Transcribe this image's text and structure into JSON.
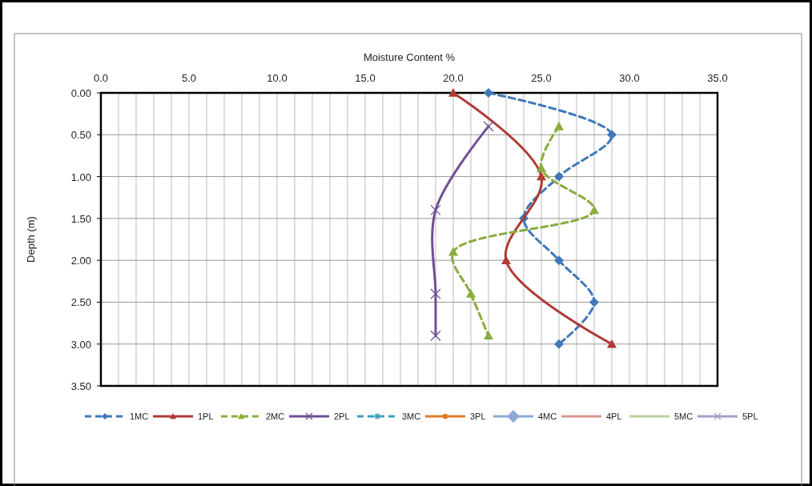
{
  "chart_data": {
    "type": "line",
    "xlabel": "Moisture Content %",
    "ylabel": "Depth (m)",
    "xlim": [
      0,
      35
    ],
    "xticks": [
      {
        "value": 0,
        "label": "0.0"
      },
      {
        "value": 1,
        "label": null
      },
      {
        "value": 2,
        "label": null
      },
      {
        "value": 3,
        "label": null
      },
      {
        "value": 4,
        "label": null
      },
      {
        "value": 5,
        "label": "5.0"
      },
      {
        "value": 6,
        "label": null
      },
      {
        "value": 7,
        "label": null
      },
      {
        "value": 8,
        "label": null
      },
      {
        "value": 9,
        "label": null
      },
      {
        "value": 10,
        "label": "10.0"
      },
      {
        "value": 11,
        "label": null
      },
      {
        "value": 12,
        "label": null
      },
      {
        "value": 13,
        "label": null
      },
      {
        "value": 14,
        "label": null
      },
      {
        "value": 15,
        "label": "15.0"
      },
      {
        "value": 16,
        "label": null
      },
      {
        "value": 17,
        "label": null
      },
      {
        "value": 18,
        "label": null
      },
      {
        "value": 19,
        "label": null
      },
      {
        "value": 20,
        "label": "20.0"
      },
      {
        "value": 21,
        "label": null
      },
      {
        "value": 22,
        "label": null
      },
      {
        "value": 23,
        "label": null
      },
      {
        "value": 24,
        "label": null
      },
      {
        "value": 25,
        "label": "25.0"
      },
      {
        "value": 26,
        "label": null
      },
      {
        "value": 27,
        "label": null
      },
      {
        "value": 28,
        "label": null
      },
      {
        "value": 29,
        "label": null
      },
      {
        "value": 30,
        "label": "30.0"
      },
      {
        "value": 31,
        "label": null
      },
      {
        "value": 32,
        "label": null
      },
      {
        "value": 33,
        "label": null
      },
      {
        "value": 34,
        "label": null
      },
      {
        "value": 35,
        "label": "35.0"
      }
    ],
    "ylim": [
      3.5,
      0
    ],
    "yticks": [
      {
        "value": 0,
        "label": "0.00"
      },
      {
        "value": 0.5,
        "label": "0.50"
      },
      {
        "value": 1,
        "label": "1.00"
      },
      {
        "value": 1.5,
        "label": "1.50"
      },
      {
        "value": 2,
        "label": "2.00"
      },
      {
        "value": 2.5,
        "label": "2.50"
      },
      {
        "value": 3,
        "label": "3.00"
      },
      {
        "value": 3.5,
        "label": "3.50"
      }
    ],
    "grid": true,
    "legend": "bottom",
    "series": [
      {
        "name": "1MC",
        "color": "#3f78b8",
        "marker": "diamond",
        "line_style": "dashed",
        "x": [
          22,
          29,
          26,
          24,
          26,
          28,
          26
        ],
        "values": [
          0,
          0.5,
          1.0,
          1.5,
          2.0,
          2.5,
          3.0
        ]
      },
      {
        "name": "1PL",
        "color": "#b03a35",
        "marker": "triangle",
        "line_style": "solid",
        "x": [
          20,
          25,
          23,
          29
        ],
        "values": [
          0,
          1.0,
          2.0,
          3.0
        ]
      },
      {
        "name": "2MC",
        "color": "#8aac3e",
        "marker": "triangle",
        "line_style": "dashed",
        "x": [
          26,
          25,
          28,
          20,
          21,
          22
        ],
        "values": [
          0.4,
          0.9,
          1.4,
          1.9,
          2.4,
          2.9
        ]
      },
      {
        "name": "2PL",
        "color": "#6f4f96",
        "marker": "cross",
        "line_style": "solid",
        "x": [
          22,
          19,
          19,
          19
        ],
        "values": [
          0.4,
          1.4,
          2.4,
          2.9
        ]
      },
      {
        "name": "3MC",
        "color": "#3aa0c0",
        "marker": "star",
        "line_style": "dashed"
      },
      {
        "name": "3PL",
        "color": "#e07b28",
        "marker": "circle",
        "line_style": "solid"
      },
      {
        "name": "4MC",
        "color": "#8fa9d6",
        "marker": "diamond",
        "line_style": "solid"
      },
      {
        "name": "4PL",
        "color": "#d99590",
        "marker": "none",
        "line_style": "solid"
      },
      {
        "name": "5MC",
        "color": "#b9d39a",
        "marker": "none",
        "line_style": "solid"
      },
      {
        "name": "5PL",
        "color": "#a99cc8",
        "marker": "cross",
        "line_style": "solid"
      }
    ]
  }
}
